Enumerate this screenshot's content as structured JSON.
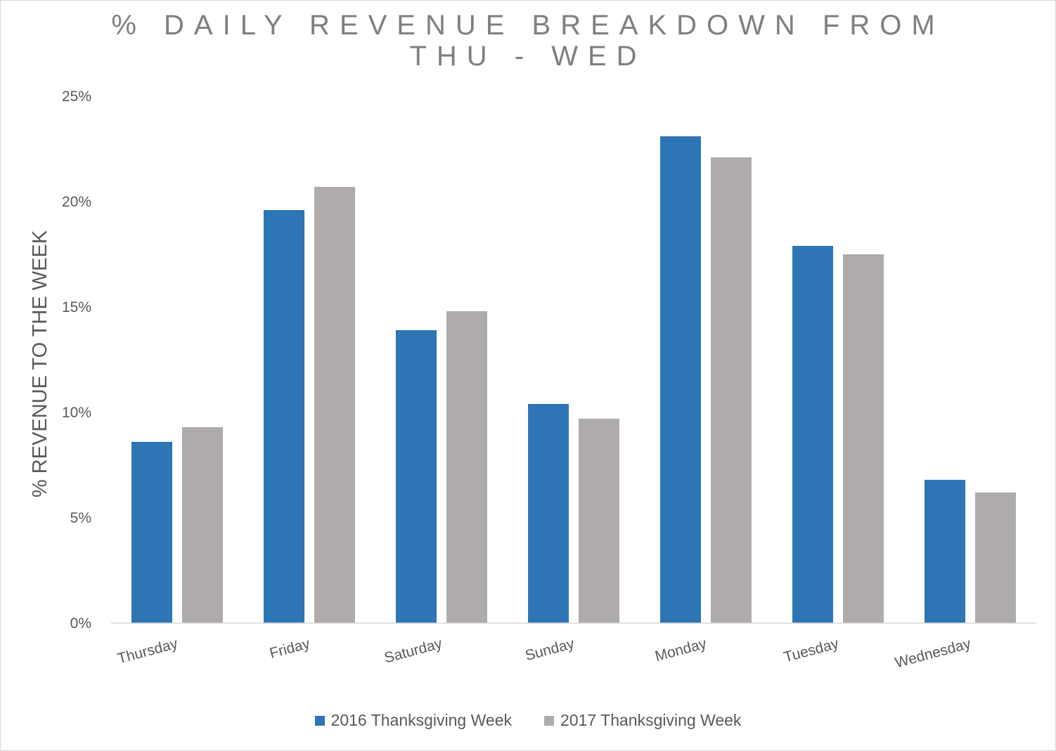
{
  "chart_data": {
    "type": "bar",
    "title_lines": [
      "% DAILY REVENUE BREAKDOWN FROM",
      "THU - WED"
    ],
    "xlabel": "",
    "ylabel": "% REVENUE TO THE WEEK",
    "ylim": [
      0,
      25
    ],
    "yticks": [
      0,
      5,
      10,
      15,
      20,
      25
    ],
    "ytick_labels": [
      "0%",
      "5%",
      "10%",
      "15%",
      "20%",
      "25%"
    ],
    "categories": [
      "Thursday",
      "Friday",
      "Saturday",
      "Sunday",
      "Monday",
      "Tuesday",
      "Wednesday"
    ],
    "series": [
      {
        "name": "2016 Thanksgiving Week",
        "color": "#2e75b6",
        "values": [
          8.6,
          19.6,
          13.9,
          10.4,
          23.1,
          17.9,
          6.8
        ]
      },
      {
        "name": "2017 Thanksgiving Week",
        "color": "#afabab",
        "values": [
          9.3,
          20.7,
          14.8,
          9.7,
          22.1,
          17.5,
          6.2
        ]
      }
    ],
    "grid": false,
    "legend_position": "bottom"
  }
}
